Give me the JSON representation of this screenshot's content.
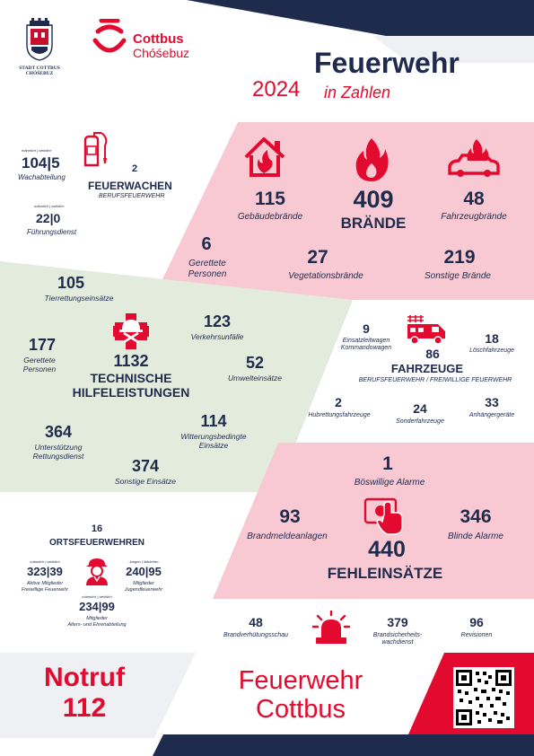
{
  "colors": {
    "navy": "#1f2b4d",
    "red": "#e30a2f",
    "pink": "#f8c9d3",
    "green": "#e3ebdd",
    "grey": "#eef0f4"
  },
  "header": {
    "coat_caption_1": "STADT COTTBUS",
    "coat_caption_2": "CHÓŠEBUZ",
    "city_name": "Cottbus",
    "city_name_sorbian": "Chóśebuz",
    "title": "Feuerwehr",
    "year": "2024",
    "subtitle": "in Zahlen"
  },
  "staff": {
    "personnel_caption": "männlich | weiblich",
    "personnel_value": "104|5",
    "personnel_label": "Wachabteilung",
    "leaders_caption": "männlich | weiblich",
    "leaders_value": "22|0",
    "leaders_label": "Führungsdienst",
    "stations_value": "2",
    "stations_label": "FEUERWACHEN",
    "stations_sub": "BERUFSFEUERWEHR",
    "icon": "fire-extinguisher-icon"
  },
  "fires": {
    "total": "409",
    "total_label": "BRÄNDE",
    "building_value": "115",
    "building_label": "Gebäudebrände",
    "vehicle_value": "48",
    "vehicle_label": "Fahrzeugbrände",
    "rescued_value": "6",
    "rescued_label_1": "Gerettete",
    "rescued_label_2": "Personen",
    "vegetation_value": "27",
    "vegetation_label": "Vegetationsbrände",
    "other_value": "219",
    "other_label": "Sonstige Brände"
  },
  "technical": {
    "total": "1132",
    "total_label_1": "TECHNISCHE",
    "total_label_2": "HILFELEISTUNGEN",
    "animal_value": "105",
    "animal_label": "Tierrettungseinsätze",
    "traffic_value": "123",
    "traffic_label": "Verkehrsunfälle",
    "rescued_value": "177",
    "rescued_label_1": "Gerettete",
    "rescued_label_2": "Personen",
    "env_value": "52",
    "env_label": "Umwelteinsätze",
    "support_value": "364",
    "support_label_1": "Unterstützung",
    "support_label_2": "Rettungsdienst",
    "weather_value": "114",
    "weather_label_1": "Witterungsbedingte",
    "weather_label_2": "Einsätze",
    "other_value": "374",
    "other_label": "Sonstige Einsätze"
  },
  "vehicles": {
    "total": "86",
    "total_label": "FAHRZEUGE",
    "total_sub": "BERUFSFEUERWEHR / FREIWILLIGE FEUERWEHR",
    "command_value": "9",
    "command_label_1": "Einsatzleitwagen",
    "command_label_2": "Kommandowagen",
    "engines_value": "18",
    "engines_label": "Löschfahrzeuge",
    "aerial_value": "2",
    "aerial_label": "Hubrettungsfahrzeuge",
    "special_value": "24",
    "special_label": "Sonderfahrzeuge",
    "trailer_value": "33",
    "trailer_label": "Anhängergeräte"
  },
  "false_alarms": {
    "total": "440",
    "total_label": "FEHLEINSÄTZE",
    "malicious_value": "1",
    "malicious_label": "Böswillige Alarme",
    "fire_alarm_value": "93",
    "fire_alarm_label": "Brandmeldeanlagen",
    "blind_value": "346",
    "blind_label": "Blinde Alarme"
  },
  "volunteers": {
    "stations_value": "16",
    "stations_label": "ORTSFEUERWEHREN",
    "active_caption": "männlich | weiblich",
    "active_value": "323|39",
    "active_label_1": "Aktive Mitglieder",
    "active_label_2": "Freiwillige Feuerwehr",
    "youth_caption": "Jungen | Mädchen",
    "youth_value": "240|95",
    "youth_label_1": "Mitglieder",
    "youth_label_2": "Jugendfeuerwehr",
    "senior_caption": "männlich | weiblich",
    "senior_value": "234|99",
    "senior_label_1": "Mitglieder",
    "senior_label_2": "Alters- und Ehrenabteilung"
  },
  "prevention": {
    "inspection_value": "48",
    "inspection_label": "Brandverhütungsschau",
    "watch_value": "379",
    "watch_label_1": "Brandsicherheits-",
    "watch_label_2": "wachdienst",
    "revision_value": "96",
    "revision_label": "Revisionen"
  },
  "footer": {
    "emergency_label": "Notruf",
    "emergency_number": "112",
    "brand_line_1": "Feuerwehr",
    "brand_line_2": "Cottbus"
  }
}
